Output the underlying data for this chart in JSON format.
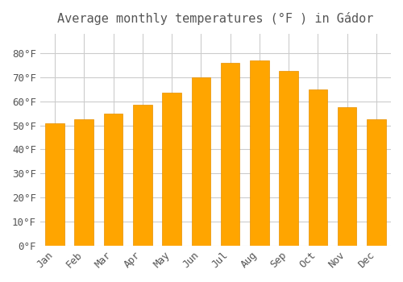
{
  "title": "Average monthly temperatures (°F ) in Gádor",
  "months": [
    "Jan",
    "Feb",
    "Mar",
    "Apr",
    "May",
    "Jun",
    "Jul",
    "Aug",
    "Sep",
    "Oct",
    "Nov",
    "Dec"
  ],
  "values": [
    51.0,
    52.5,
    55.0,
    58.5,
    63.5,
    70.0,
    76.0,
    77.0,
    72.5,
    65.0,
    57.5,
    52.5
  ],
  "bar_color": "#FFA500",
  "bar_edge_color": "#E69000",
  "background_color": "#FFFFFF",
  "grid_color": "#CCCCCC",
  "text_color": "#555555",
  "ylim": [
    0,
    88
  ],
  "yticks": [
    0,
    10,
    20,
    30,
    40,
    50,
    60,
    70,
    80
  ],
  "title_fontsize": 11,
  "tick_fontsize": 9
}
